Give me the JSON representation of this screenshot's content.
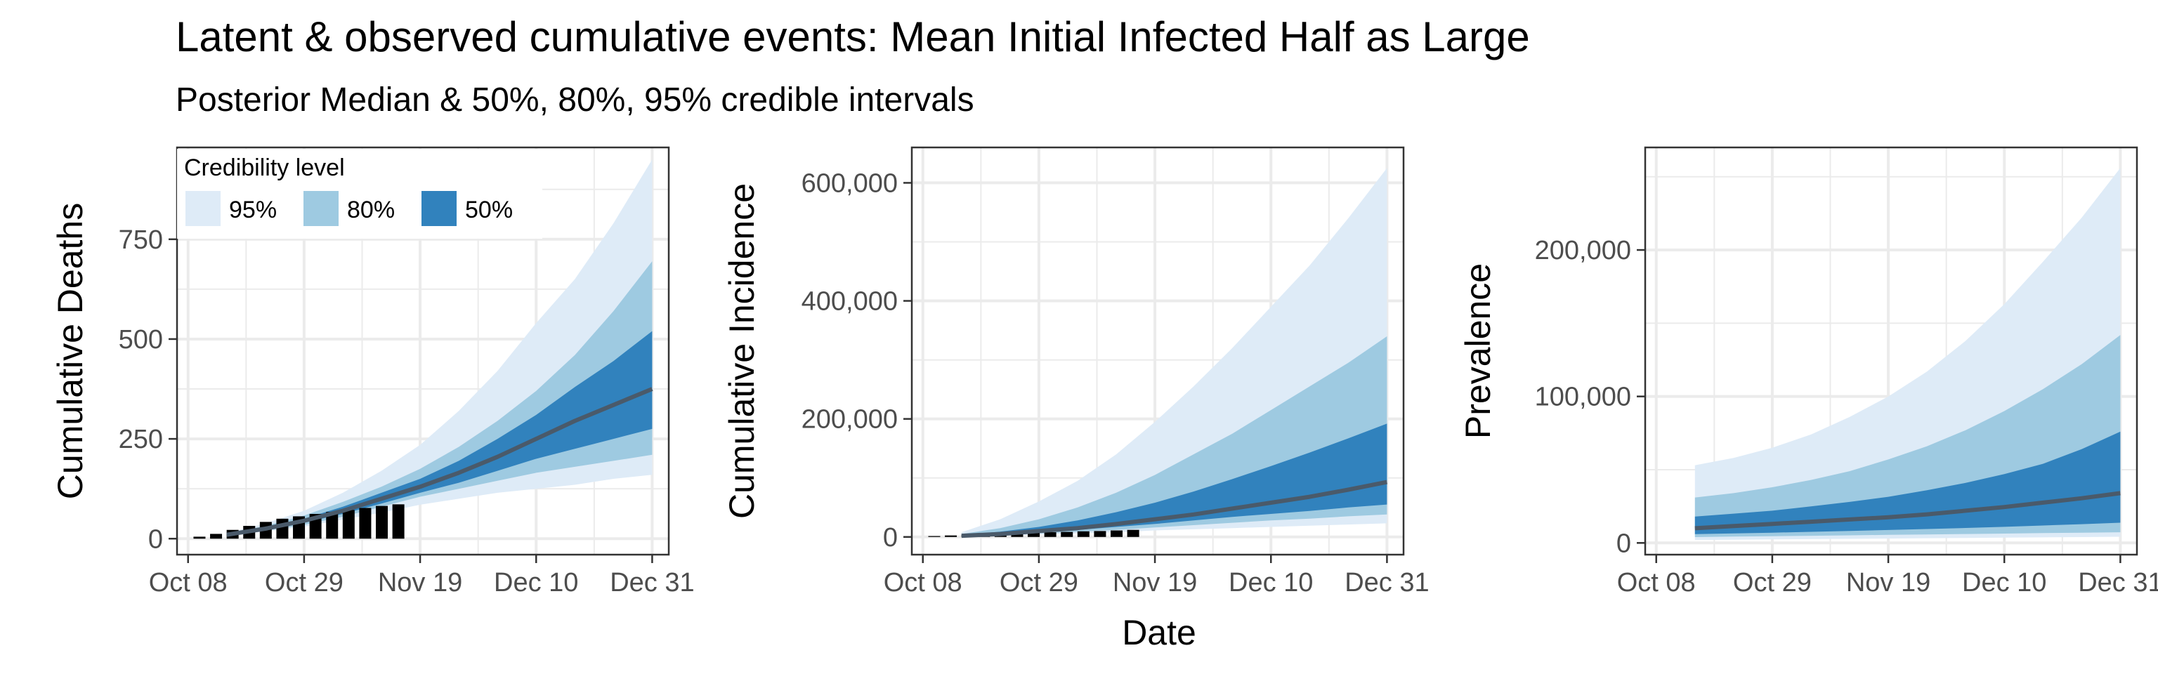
{
  "title": "Latent & observed cumulative events: Mean Initial Infected Half as Large",
  "subtitle": "Posterior Median & 50%, 80%, 95% credible intervals",
  "x_label": "Date",
  "legend": {
    "title": "Credibility level",
    "items": [
      {
        "label": "95%",
        "color": "#deebf7"
      },
      {
        "label": "80%",
        "color": "#9ecae1"
      },
      {
        "label": "50%",
        "color": "#3182bd"
      }
    ]
  },
  "colors": {
    "median": "#4a5a6a",
    "observed": "#000000",
    "grid": "#ebebeb"
  },
  "chart_data": [
    {
      "type": "area",
      "ylabel": "Cumulative Deaths",
      "x": [
        "2020-10-15",
        "2020-10-22",
        "2020-10-29",
        "2020-11-05",
        "2020-11-12",
        "2020-11-19",
        "2020-11-26",
        "2020-12-03",
        "2020-12-10",
        "2020-12-17",
        "2020-12-24",
        "2020-12-31"
      ],
      "xticks": [
        "Oct 08",
        "Oct 29",
        "Nov 19",
        "Dec 10",
        "Dec 31"
      ],
      "yticks": [
        0,
        250,
        500,
        750
      ],
      "yticklabels": [
        "0",
        "250",
        "500",
        "750"
      ],
      "ylim": [
        -40,
        980
      ],
      "median": [
        10,
        25,
        45,
        70,
        100,
        130,
        165,
        205,
        250,
        295,
        335,
        375
      ],
      "band95": {
        "lower": [
          8,
          18,
          30,
          48,
          65,
          85,
          100,
          115,
          125,
          135,
          150,
          160
        ],
        "upper": [
          14,
          38,
          70,
          115,
          170,
          235,
          320,
          420,
          540,
          650,
          790,
          950
        ]
      },
      "band80": {
        "lower": [
          9,
          20,
          35,
          55,
          80,
          105,
          125,
          145,
          165,
          180,
          195,
          210
        ],
        "upper": [
          13,
          32,
          58,
          92,
          130,
          175,
          230,
          295,
          370,
          460,
          570,
          695
        ]
      },
      "band50": {
        "lower": [
          9,
          22,
          40,
          62,
          88,
          115,
          140,
          170,
          200,
          225,
          250,
          275
        ],
        "upper": [
          12,
          28,
          50,
          80,
          115,
          150,
          195,
          250,
          310,
          380,
          445,
          520
        ]
      },
      "observed": {
        "x": [
          "2020-10-10",
          "2020-10-13",
          "2020-10-16",
          "2020-10-19",
          "2020-10-22",
          "2020-10-25",
          "2020-10-28",
          "2020-10-31",
          "2020-11-03",
          "2020-11-06",
          "2020-11-09",
          "2020-11-12",
          "2020-11-15"
        ],
        "values": [
          5,
          12,
          22,
          32,
          42,
          50,
          56,
          62,
          67,
          72,
          77,
          82,
          86
        ]
      }
    },
    {
      "type": "area",
      "ylabel": "Cumulative Incidence",
      "x": [
        "2020-10-15",
        "2020-10-22",
        "2020-10-29",
        "2020-11-05",
        "2020-11-12",
        "2020-11-19",
        "2020-11-26",
        "2020-12-03",
        "2020-12-10",
        "2020-12-17",
        "2020-12-24",
        "2020-12-31"
      ],
      "xticks": [
        "Oct 08",
        "Oct 29",
        "Nov 19",
        "Dec 10",
        "Dec 31"
      ],
      "yticks": [
        0,
        200000,
        400000,
        600000
      ],
      "yticklabels": [
        "0",
        "200,000",
        "400,000",
        "600,000"
      ],
      "ylim": [
        -30000,
        660000
      ],
      "median": [
        2000,
        5000,
        10000,
        15000,
        22000,
        30000,
        38000,
        48000,
        58000,
        68000,
        80000,
        93000
      ],
      "band95": {
        "lower": [
          1000,
          2000,
          4000,
          6000,
          8000,
          11000,
          13000,
          15000,
          17000,
          19000,
          21000,
          23000
        ],
        "upper": [
          8000,
          30000,
          60000,
          95000,
          140000,
          195000,
          255000,
          320000,
          390000,
          460000,
          540000,
          625000
        ]
      },
      "band80": {
        "lower": [
          1500,
          3000,
          6000,
          9000,
          12000,
          16000,
          20000,
          24000,
          28000,
          31000,
          35000,
          38000
        ],
        "upper": [
          5000,
          15000,
          30000,
          50000,
          75000,
          105000,
          140000,
          175000,
          215000,
          255000,
          295000,
          340000
        ]
      },
      "band50": {
        "lower": [
          1800,
          4000,
          8000,
          12000,
          17000,
          22000,
          28000,
          34000,
          39000,
          44000,
          50000,
          55000
        ],
        "upper": [
          3000,
          9000,
          17000,
          28000,
          42000,
          58000,
          77000,
          98000,
          120000,
          143000,
          167000,
          192000
        ]
      },
      "observed": {
        "x": [
          "2020-10-10",
          "2020-10-13",
          "2020-10-16",
          "2020-10-19",
          "2020-10-22",
          "2020-10-25",
          "2020-10-28",
          "2020-10-31",
          "2020-11-03",
          "2020-11-06",
          "2020-11-09",
          "2020-11-12",
          "2020-11-15"
        ],
        "values": [
          1500,
          2500,
          3500,
          4500,
          5500,
          6500,
          7000,
          8000,
          8500,
          9500,
          10000,
          11000,
          12000
        ]
      }
    },
    {
      "type": "area",
      "ylabel": "Prevalence",
      "x": [
        "2020-10-15",
        "2020-10-22",
        "2020-10-29",
        "2020-11-05",
        "2020-11-12",
        "2020-11-19",
        "2020-11-26",
        "2020-12-03",
        "2020-12-10",
        "2020-12-17",
        "2020-12-24",
        "2020-12-31"
      ],
      "xticks": [
        "Oct 08",
        "Oct 29",
        "Nov 19",
        "Dec 10",
        "Dec 31"
      ],
      "yticks": [
        0,
        100000,
        200000
      ],
      "yticklabels": [
        "0",
        "100,000",
        "200,000"
      ],
      "ylim": [
        -8000,
        270000
      ],
      "median": [
        10000,
        11500,
        13000,
        14500,
        16000,
        17500,
        19500,
        22000,
        24500,
        27500,
        30500,
        34000
      ],
      "band95": {
        "lower": [
          2000,
          2200,
          2400,
          2600,
          2800,
          3000,
          3200,
          3400,
          3600,
          3800,
          4000,
          4200
        ],
        "upper": [
          53000,
          58000,
          65000,
          74000,
          86000,
          100000,
          117000,
          138000,
          163000,
          192000,
          222000,
          256000
        ]
      },
      "band80": {
        "lower": [
          4000,
          4300,
          4600,
          4900,
          5200,
          5500,
          5800,
          6100,
          6400,
          6700,
          7000,
          7300
        ],
        "upper": [
          31000,
          34000,
          38000,
          43000,
          49000,
          57000,
          66000,
          77000,
          90000,
          105000,
          122000,
          142000
        ]
      },
      "band50": {
        "lower": [
          6000,
          6500,
          7000,
          7600,
          8200,
          8800,
          9500,
          10200,
          11000,
          11900,
          12800,
          13800
        ],
        "upper": [
          18000,
          20000,
          22000,
          25000,
          28000,
          31500,
          36000,
          41000,
          47000,
          54000,
          64000,
          76000
        ]
      }
    }
  ]
}
